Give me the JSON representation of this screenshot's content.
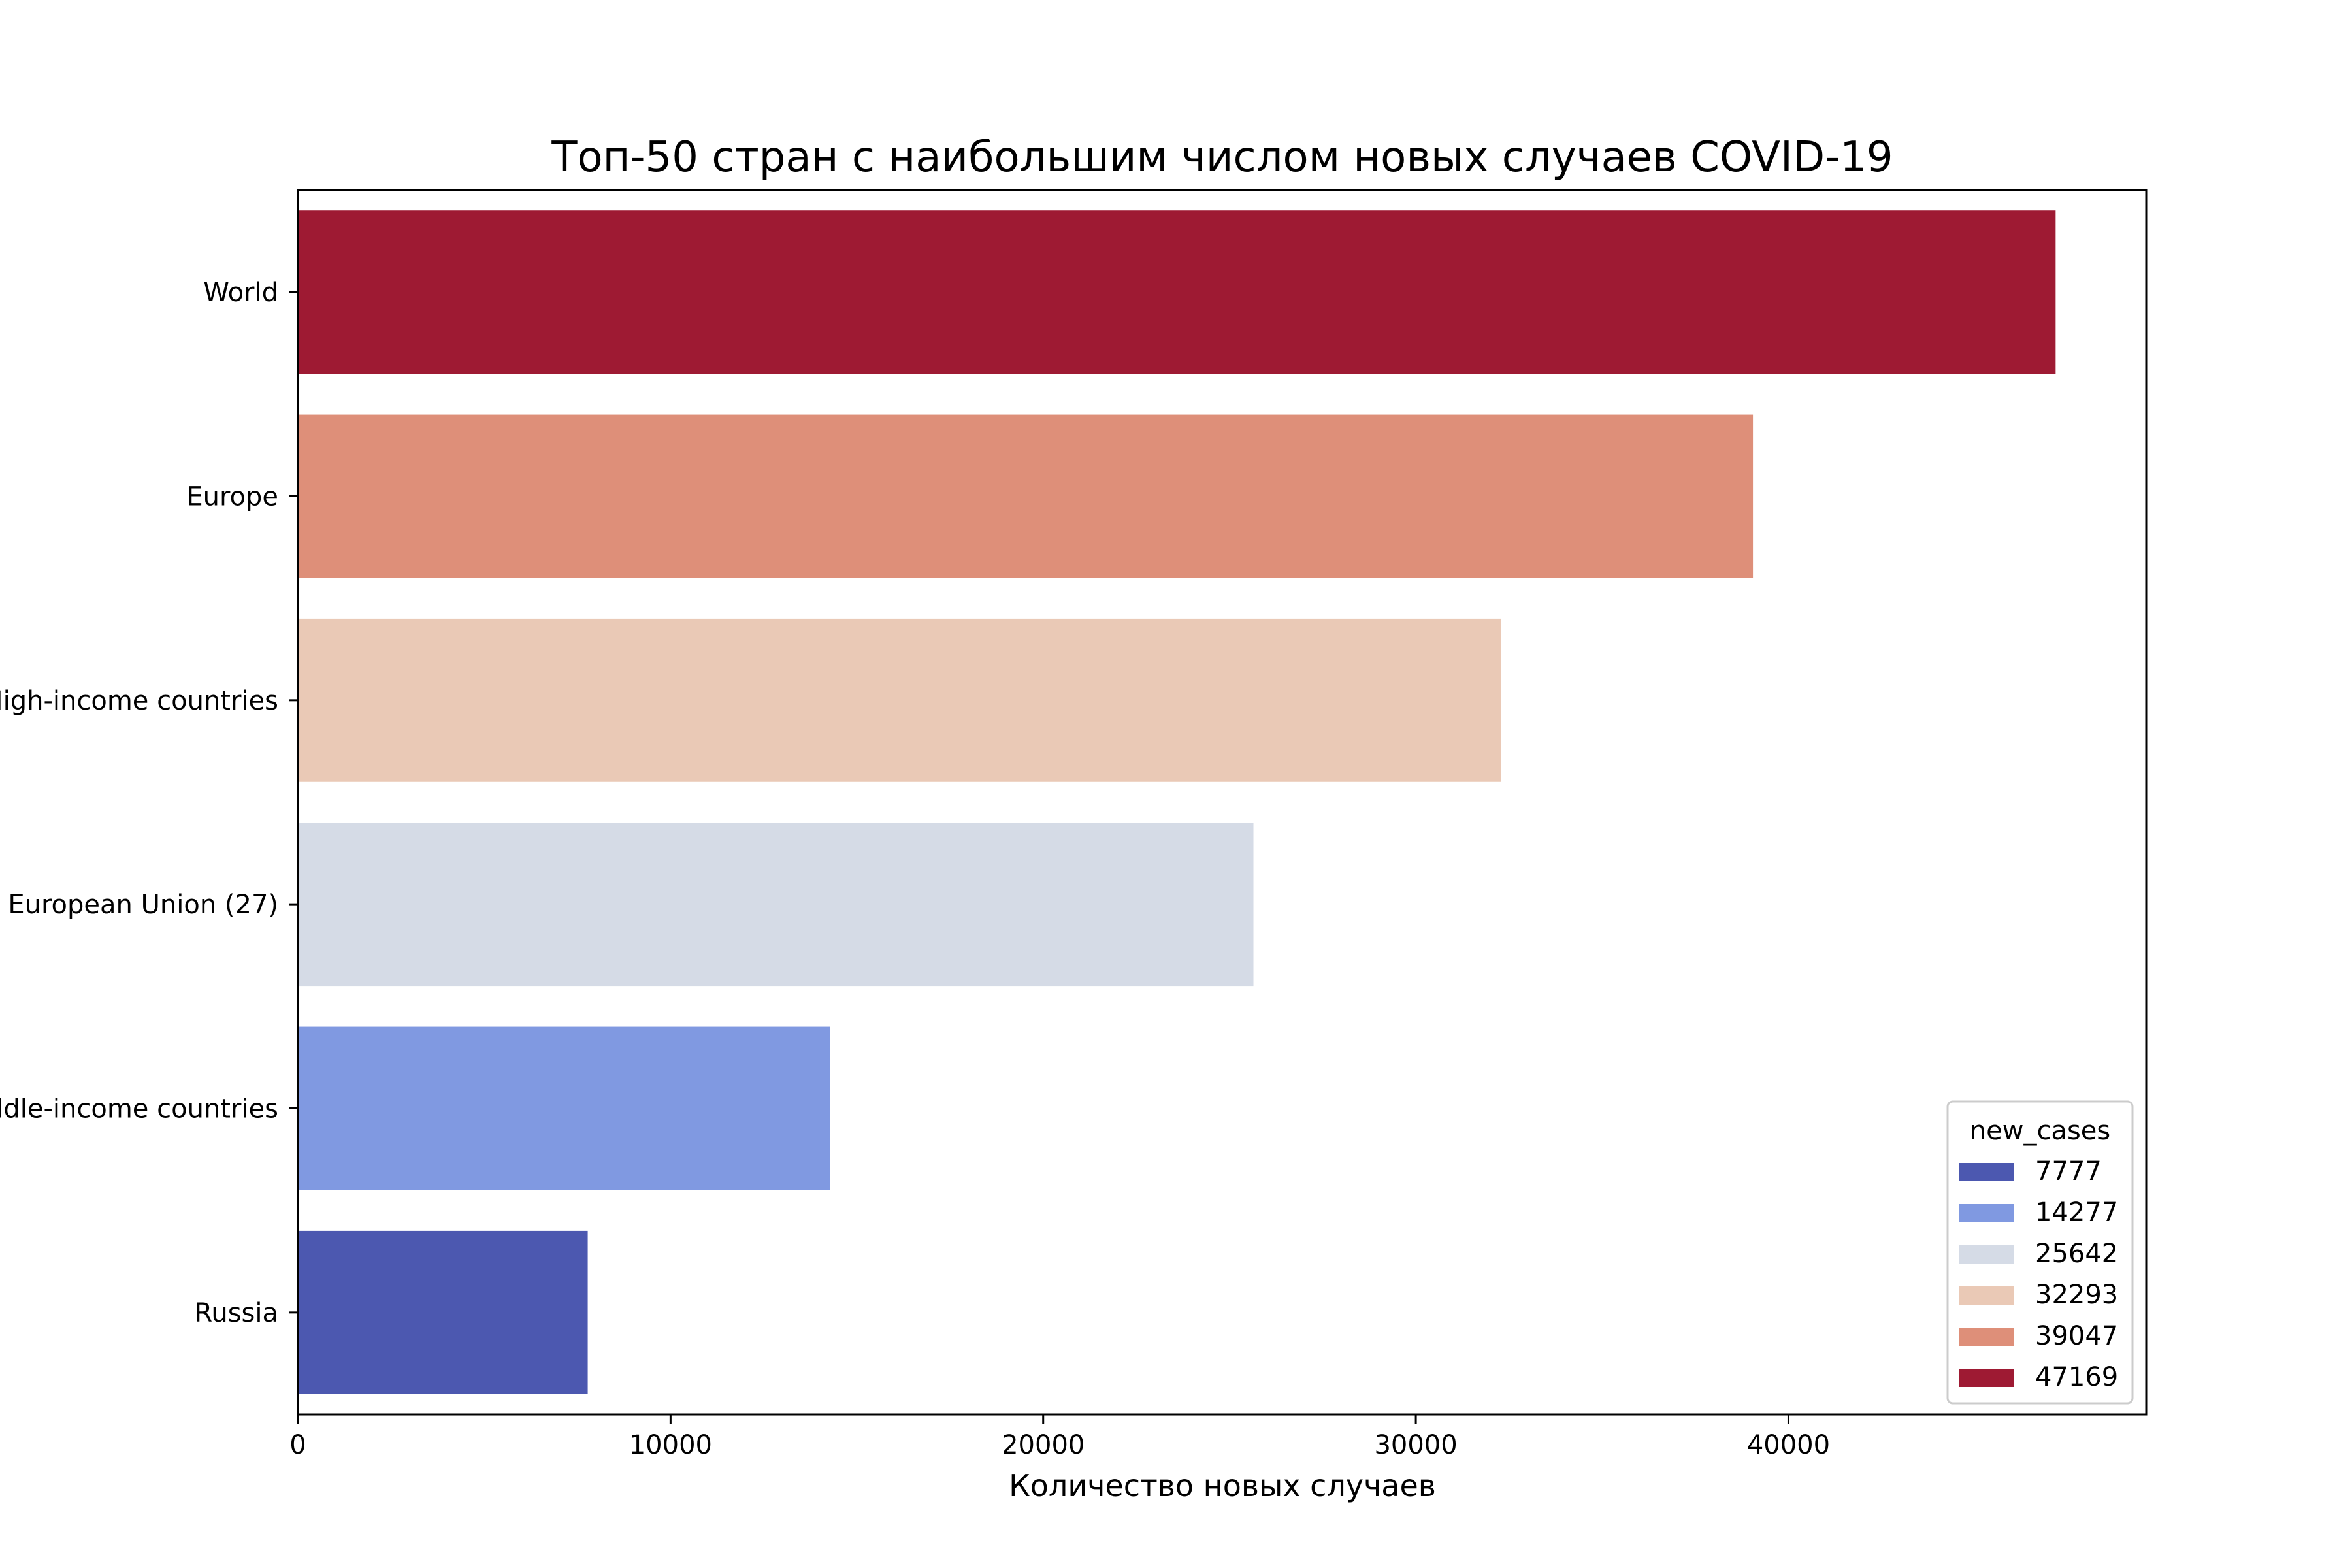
{
  "chart_data": {
    "type": "bar",
    "orientation": "horizontal",
    "title": "Топ-50 стран с наибольшим числом новых случаев COVID-19",
    "xlabel": "Количество новых случаев",
    "ylabel": "",
    "categories": [
      "World",
      "Europe",
      "High-income countries",
      "European Union (27)",
      "Upper-middle-income countries",
      "Russia"
    ],
    "values": [
      47169,
      39047,
      32293,
      25642,
      14277,
      7777
    ],
    "colors": [
      "#9e1a33",
      "#de8f79",
      "#eac9b6",
      "#d5dbe6",
      "#8099e1",
      "#4c58b0"
    ],
    "xlim": [
      0,
      49600
    ],
    "xticks": [
      0,
      10000,
      20000,
      30000,
      40000
    ],
    "grid": false,
    "legend": {
      "title": "new_cases",
      "placement": "lower-right",
      "entries": [
        {
          "label": "7777",
          "color": "#4c58b0"
        },
        {
          "label": "14277",
          "color": "#8099e1"
        },
        {
          "label": "25642",
          "color": "#d5dbe6"
        },
        {
          "label": "32293",
          "color": "#eac9b6"
        },
        {
          "label": "39047",
          "color": "#de8f79"
        },
        {
          "label": "47169",
          "color": "#9e1a33"
        }
      ]
    }
  }
}
